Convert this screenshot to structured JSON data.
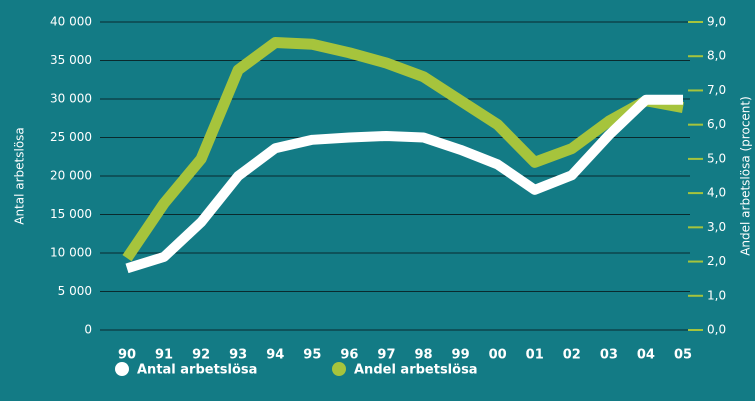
{
  "chart_data": {
    "type": "line",
    "categories": [
      "90",
      "91",
      "92",
      "93",
      "94",
      "95",
      "96",
      "97",
      "98",
      "99",
      "00",
      "01",
      "02",
      "03",
      "04",
      "05"
    ],
    "y_label": "Antal arbetslösa",
    "y2_label": "Andel arbetslösa (procent)",
    "series": [
      {
        "name": "Antal arbetslösa",
        "color": "#ffffff",
        "values": [
          8000,
          9500,
          14000,
          20000,
          23600,
          24700,
          25000,
          25200,
          25000,
          23400,
          21500,
          18200,
          20100,
          25300,
          29900,
          29900
        ]
      },
      {
        "name": "Andel arbetslösa",
        "color": "#a6c43c",
        "axis": "y2",
        "values": [
          2.1,
          3.7,
          5.0,
          7.6,
          8.4,
          8.35,
          8.1,
          7.8,
          7.4,
          6.7,
          6.0,
          4.9,
          5.3,
          6.1,
          6.7,
          6.5
        ]
      }
    ],
    "ylim": [
      0,
      40000
    ],
    "yticks": [
      0,
      {
        "value": 5000,
        "label": "5 000"
      },
      {
        "value": 10000,
        "label": "10 000"
      },
      {
        "value": 15000,
        "label": "15 000"
      },
      {
        "value": 20000,
        "label": "20 000"
      },
      {
        "value": 25000,
        "label": "25 000"
      },
      {
        "value": 30000,
        "label": "30 000"
      },
      {
        "value": 35000,
        "label": "35 000"
      },
      {
        "value": 40000,
        "label": "40 000"
      }
    ],
    "y2lim": [
      0,
      9
    ],
    "y2ticks": [
      {
        "value": 0,
        "label": "0,0"
      },
      {
        "value": 1,
        "label": "1,0"
      },
      {
        "value": 2,
        "label": "2,0"
      },
      {
        "value": 3,
        "label": "3,0"
      },
      {
        "value": 4,
        "label": "4,0"
      },
      {
        "value": 5,
        "label": "5,0"
      },
      {
        "value": 6,
        "label": "6,0"
      },
      {
        "value": 7,
        "label": "7,0"
      },
      {
        "value": 8,
        "label": "8,0"
      },
      {
        "value": 9,
        "label": "9,0"
      }
    ],
    "grid": true,
    "legend": "bottom-left"
  }
}
